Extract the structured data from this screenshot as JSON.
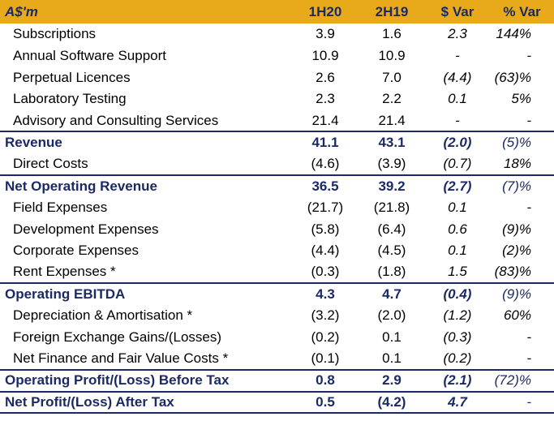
{
  "header": {
    "label": "A$'m",
    "col_1h20": "1H20",
    "col_2h19": "2H19",
    "col_dvar": "$ Var",
    "col_pvar": "% Var"
  },
  "rows": [
    {
      "label": "Subscriptions",
      "h1h20": "3.9",
      "h2h19": "1.6",
      "dvar": "2.3",
      "pvar": "144%",
      "total": false
    },
    {
      "label": "Annual Software Support",
      "h1h20": "10.9",
      "h2h19": "10.9",
      "dvar": "-",
      "pvar": "-",
      "total": false
    },
    {
      "label": "Perpetual Licences",
      "h1h20": "2.6",
      "h2h19": "7.0",
      "dvar": "(4.4)",
      "pvar": "(63)%",
      "total": false
    },
    {
      "label": "Laboratory Testing",
      "h1h20": "2.3",
      "h2h19": "2.2",
      "dvar": "0.1",
      "pvar": "5%",
      "total": false
    },
    {
      "label": "Advisory and Consulting Services",
      "h1h20": "21.4",
      "h2h19": "21.4",
      "dvar": "-",
      "pvar": "-",
      "total": false
    },
    {
      "label": "Revenue",
      "h1h20": "41.1",
      "h2h19": "43.1",
      "dvar": "(2.0)",
      "pvar": "(5)%",
      "total": true
    },
    {
      "label": "Direct Costs",
      "h1h20": "(4.6)",
      "h2h19": "(3.9)",
      "dvar": "(0.7)",
      "pvar": "18%",
      "total": false
    },
    {
      "label": "Net Operating Revenue",
      "h1h20": "36.5",
      "h2h19": "39.2",
      "dvar": "(2.7)",
      "pvar": "(7)%",
      "total": true
    },
    {
      "label": "Field Expenses",
      "h1h20": "(21.7)",
      "h2h19": "(21.8)",
      "dvar": "0.1",
      "pvar": "-",
      "total": false
    },
    {
      "label": "Development Expenses",
      "h1h20": "(5.8)",
      "h2h19": "(6.4)",
      "dvar": "0.6",
      "pvar": "(9)%",
      "total": false
    },
    {
      "label": "Corporate Expenses",
      "h1h20": "(4.4)",
      "h2h19": "(4.5)",
      "dvar": "0.1",
      "pvar": "(2)%",
      "total": false
    },
    {
      "label": "Rent Expenses *",
      "h1h20": "(0.3)",
      "h2h19": "(1.8)",
      "dvar": "1.5",
      "pvar": "(83)%",
      "total": false
    },
    {
      "label": "Operating EBITDA",
      "h1h20": "4.3",
      "h2h19": "4.7",
      "dvar": "(0.4)",
      "pvar": "(9)%",
      "total": true
    },
    {
      "label": "Depreciation & Amortisation *",
      "h1h20": "(3.2)",
      "h2h19": "(2.0)",
      "dvar": "(1.2)",
      "pvar": "60%",
      "total": false
    },
    {
      "label": "Foreign Exchange Gains/(Losses)",
      "h1h20": "(0.2)",
      "h2h19": "0.1",
      "dvar": "(0.3)",
      "pvar": "-",
      "total": false
    },
    {
      "label": "Net Finance and Fair Value Costs *",
      "h1h20": "(0.1)",
      "h2h19": "0.1",
      "dvar": "(0.2)",
      "pvar": "-",
      "total": false
    },
    {
      "label": "Operating Profit/(Loss) Before Tax",
      "h1h20": "0.8",
      "h2h19": "2.9",
      "dvar": "(2.1)",
      "pvar": "(72)%",
      "total": true
    },
    {
      "label": "Net Profit/(Loss) After Tax",
      "h1h20": "0.5",
      "h2h19": "(4.2)",
      "dvar": "4.7",
      "pvar": "-",
      "total": true
    }
  ],
  "colors": {
    "header_bg": "#e8a91b",
    "accent_navy": "#1b2a63"
  }
}
